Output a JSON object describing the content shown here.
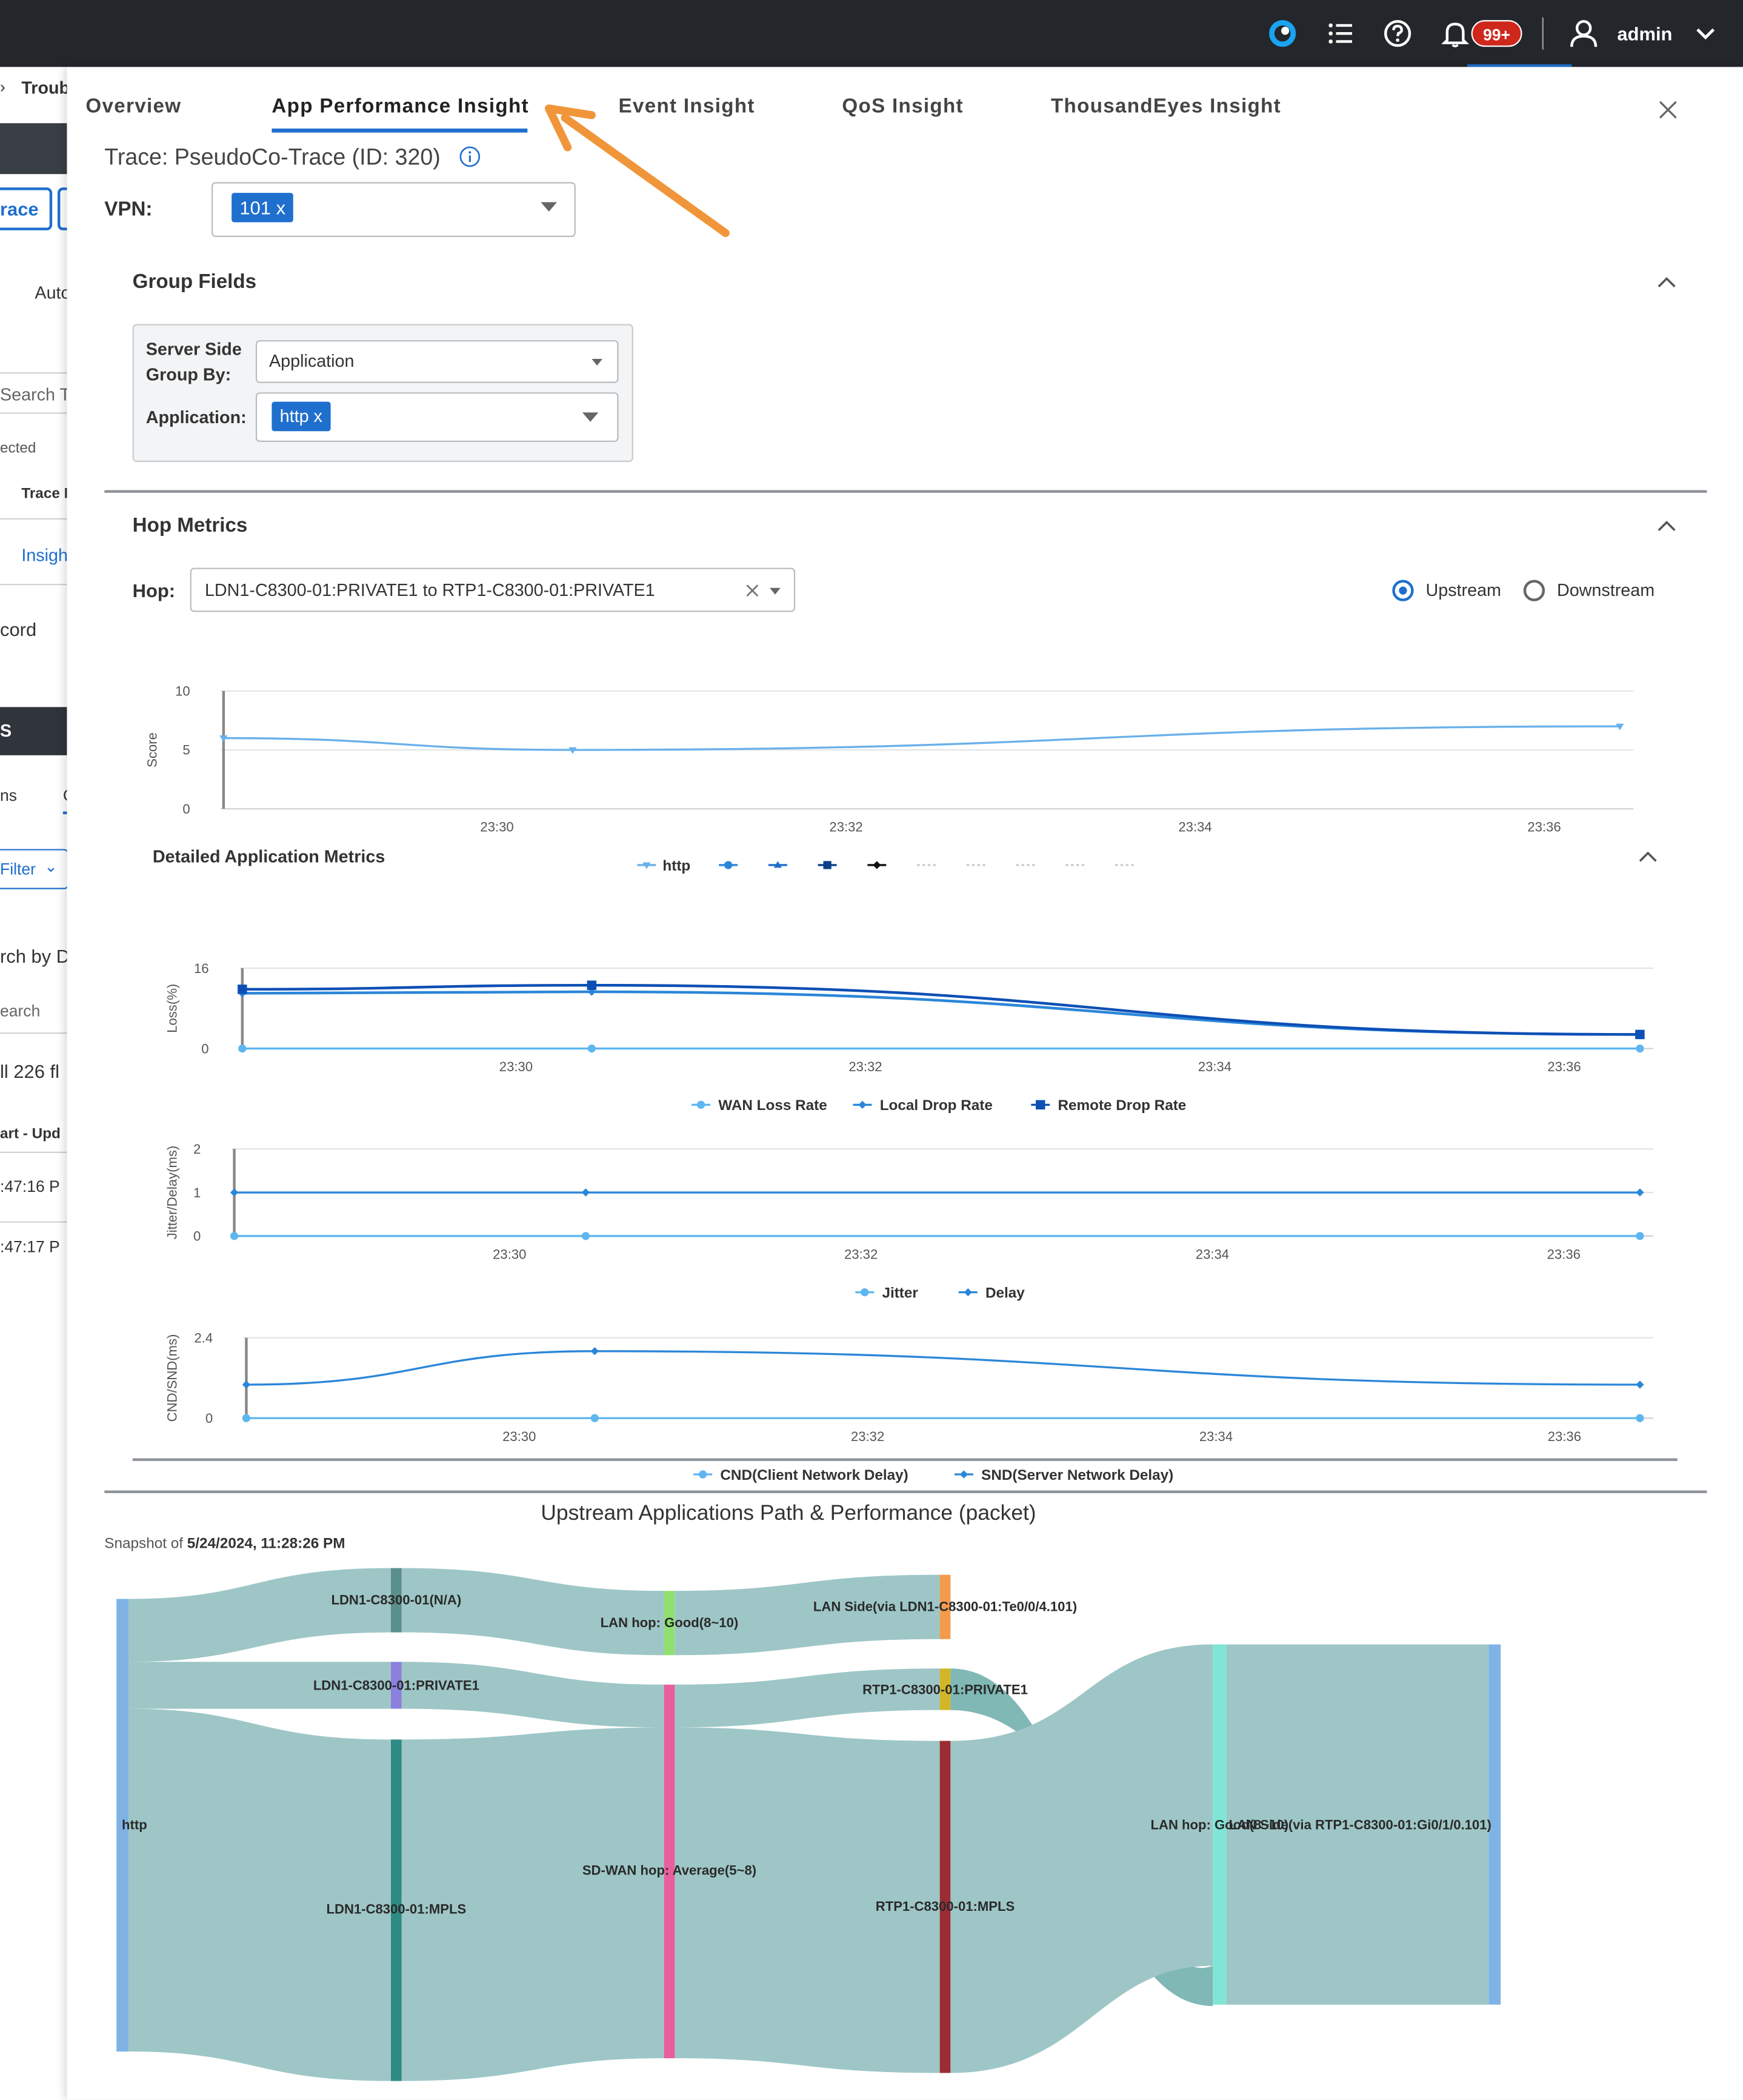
{
  "topbar": {
    "icons": [
      "webex-icon",
      "list-icon",
      "help-icon",
      "bell-icon",
      "user-icon",
      "chevron-down-icon"
    ],
    "notifications": "99+",
    "user": "admin"
  },
  "background": {
    "breadcrumb": "Troubl",
    "trace_btn": "race",
    "auto": "Auto",
    "search": "Search T",
    "selected": "ected",
    "trace_col": "Trace I",
    "insight": "Insigh",
    "record": "cord",
    "s_letter": "S",
    "ns": "ns",
    "c_letter": "C",
    "filter": "Filter",
    "search_by": "rch by D",
    "search2": "earch",
    "all_flows": "ll 226 fl",
    "start_upd": "art - Upd",
    "time1": ":47:16 P",
    "time2": ":47:17 P"
  },
  "tabs": [
    {
      "label": "Overview",
      "active": false
    },
    {
      "label": "App Performance Insight",
      "active": true
    },
    {
      "label": "Event Insight",
      "active": false
    },
    {
      "label": "QoS Insight",
      "active": false
    },
    {
      "label": "ThousandEyes Insight",
      "active": false
    }
  ],
  "trace": {
    "title": "Trace: PseudoCo-Trace (ID: 320)"
  },
  "vpn": {
    "label": "VPN:",
    "chip": "101 x"
  },
  "group_fields": {
    "title": "Group Fields",
    "group_by_label_1": "Server Side",
    "group_by_label_2": "Group By:",
    "group_by_value": "Application",
    "application_label": "Application:",
    "application_chip": "http x"
  },
  "hop_metrics": {
    "title": "Hop Metrics",
    "hop_label": "Hop:",
    "hop_value": "LDN1-C8300-01:PRIVATE1 to RTP1-C8300-01:PRIVATE1",
    "upstream": "Upstream",
    "downstream": "Downstream",
    "direction": "Upstream"
  },
  "detailed": {
    "title": "Detailed Application Metrics"
  },
  "sankey": {
    "title": "Upstream Applications Path & Performance (packet)",
    "snapshot_prefix": "Snapshot of ",
    "snapshot_date": "5/24/2024, 11:28:26 PM",
    "nodes": {
      "http": "http",
      "na": "LDN1-C8300-01(N/A)",
      "private1": "LDN1-C8300-01:PRIVATE1",
      "mpls": "LDN1-C8300-01:MPLS",
      "lan_good": "LAN hop: Good(8~10)",
      "sdwan": "SD-WAN hop: Average(5~8)",
      "lan_side": "LAN Side(via LDN1-C8300-01:Te0/0/4.101)",
      "rtp_private": "RTP1-C8300-01:PRIVATE1",
      "rtp_mpls": "RTP1-C8300-01:MPLS",
      "lan_good2": "LAN hop: Good(8~10)",
      "lan_side2": "LAN Side(via RTP1-C8300-01:Gi0/1/0.101)"
    }
  },
  "chart_data": [
    {
      "type": "line",
      "title": "",
      "ylabel": "Score",
      "ylim": [
        0,
        10
      ],
      "yticks": [
        "10",
        "5",
        "0"
      ],
      "xticks": [
        "23:30",
        "23:32",
        "23:34",
        "23:36"
      ],
      "x": [
        "23:28:26",
        "23:30:26",
        "23:36:26"
      ],
      "series": [
        {
          "name": "http",
          "values": [
            6,
            5,
            7
          ]
        }
      ],
      "legend": "bottom",
      "grid": true
    },
    {
      "type": "line",
      "ylabel": "Loss(%)",
      "ylim": [
        0,
        16
      ],
      "yticks": [
        "16",
        "0"
      ],
      "xticks": [
        "23:30",
        "23:32",
        "23:34",
        "23:36"
      ],
      "x": [
        "23:28:26",
        "23:30:26",
        "23:36:26"
      ],
      "series": [
        {
          "name": "WAN Loss Rate",
          "values": [
            0,
            0,
            0
          ]
        },
        {
          "name": "Local Drop Rate",
          "values": [
            11,
            11.3,
            2.8
          ]
        },
        {
          "name": "Remote Drop Rate",
          "values": [
            11.8,
            12.6,
            2.8
          ]
        }
      ],
      "legend": "bottom",
      "grid": true
    },
    {
      "type": "line",
      "ylabel": "Jitter/Delay(ms)",
      "ylim": [
        0,
        2
      ],
      "yticks": [
        "2",
        "1",
        "0"
      ],
      "xticks": [
        "23:30",
        "23:32",
        "23:34",
        "23:36"
      ],
      "x": [
        "23:28:26",
        "23:30:26",
        "23:36:26"
      ],
      "series": [
        {
          "name": "Jitter",
          "values": [
            0,
            0,
            0
          ]
        },
        {
          "name": "Delay",
          "values": [
            1,
            1,
            1
          ]
        }
      ],
      "legend": "bottom",
      "grid": true
    },
    {
      "type": "line",
      "ylabel": "CND/SND(ms)",
      "ylim": [
        0,
        2.4
      ],
      "yticks": [
        "2.4",
        "0"
      ],
      "xticks": [
        "23:30",
        "23:32",
        "23:34",
        "23:36"
      ],
      "x": [
        "23:28:26",
        "23:30:26",
        "23:36:26"
      ],
      "series": [
        {
          "name": "CND(Client Network Delay)",
          "values": [
            0,
            0,
            0
          ]
        },
        {
          "name": "SND(Server Network Delay)",
          "values": [
            1,
            2,
            1
          ]
        }
      ],
      "legend": "bottom",
      "grid": true
    }
  ],
  "colors": {
    "accent": "#1f6fce",
    "orange_arrow": "#f0953a",
    "topbar": "#23262b",
    "badge": "#d0271d"
  }
}
